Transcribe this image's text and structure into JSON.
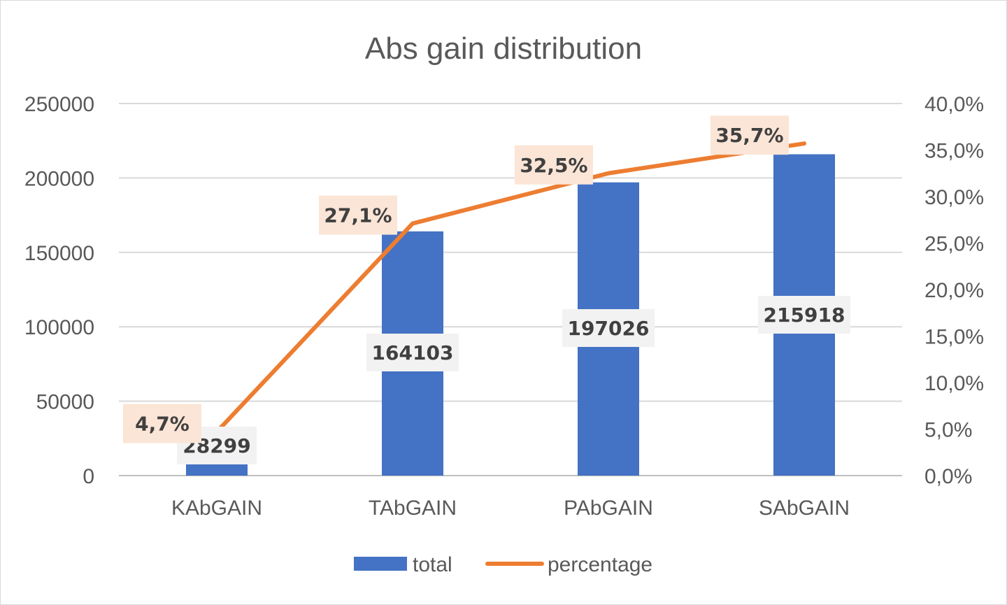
{
  "chart_data": {
    "type": "bar",
    "title": "Abs gain distribution",
    "categories": [
      "KAbGAIN",
      "TAbGAIN",
      "PAbGAIN",
      "SAbGAIN"
    ],
    "series": [
      {
        "name": "total",
        "type": "bar",
        "axis": "left",
        "values": [
          28299,
          164103,
          197026,
          215918
        ],
        "labels": [
          "28299",
          "164103",
          "197026",
          "215918"
        ],
        "color": "#4472C4"
      },
      {
        "name": "percentage",
        "type": "line",
        "axis": "right",
        "values": [
          4.7,
          27.1,
          32.5,
          35.7
        ],
        "labels": [
          "4,7%",
          "27,1%",
          "32,5%",
          "35,7%"
        ],
        "color": "#ED7D31"
      }
    ],
    "ylim": [
      0,
      250000
    ],
    "y2lim": [
      0,
      40
    ],
    "yticks": [
      "0",
      "50000",
      "100000",
      "150000",
      "200000",
      "250000"
    ],
    "y2ticks": [
      "0,0%",
      "5,0%",
      "10,0%",
      "15,0%",
      "20,0%",
      "25,0%",
      "30,0%",
      "35,0%",
      "40,0%"
    ],
    "grid": true,
    "legend": "bottom"
  }
}
